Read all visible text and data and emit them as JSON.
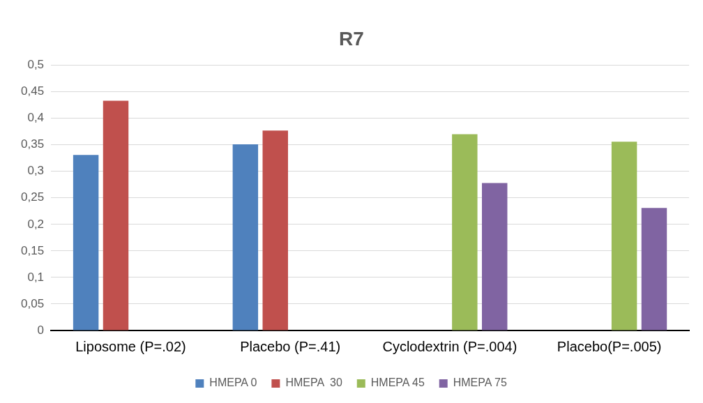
{
  "chart_data": {
    "type": "bar",
    "title": "R7",
    "categories": [
      "Liposome (P=.02)",
      "Placebo (P=.41)",
      "Cyclodextrin (P=.004)",
      "Placebo(P=.005)"
    ],
    "series": [
      {
        "name": "HMEPA 0",
        "color": "#4f81bd",
        "values": [
          0.331,
          0.351,
          null,
          null
        ]
      },
      {
        "name": "HMEPA  30",
        "color": "#c0504d",
        "values": [
          0.433,
          0.377,
          null,
          null
        ]
      },
      {
        "name": "HMEPA 45",
        "color": "#9bbb59",
        "values": [
          null,
          null,
          0.37,
          0.356
        ]
      },
      {
        "name": "HMEPA 75",
        "color": "#8064a2",
        "values": [
          null,
          null,
          0.278,
          0.231
        ]
      }
    ],
    "ylim": [
      0,
      0.5
    ],
    "yticks": [
      {
        "value": 0,
        "label": "0"
      },
      {
        "value": 0.05,
        "label": "0,05"
      },
      {
        "value": 0.1,
        "label": "0,1"
      },
      {
        "value": 0.15,
        "label": "0,15"
      },
      {
        "value": 0.2,
        "label": "0,2"
      },
      {
        "value": 0.25,
        "label": "0,25"
      },
      {
        "value": 0.3,
        "label": "0,3"
      },
      {
        "value": 0.35,
        "label": "0,35"
      },
      {
        "value": 0.4,
        "label": "0,4"
      },
      {
        "value": 0.45,
        "label": "0,45"
      },
      {
        "value": 0.5,
        "label": "0,5"
      }
    ],
    "grid": "y",
    "legend": "bottom"
  }
}
